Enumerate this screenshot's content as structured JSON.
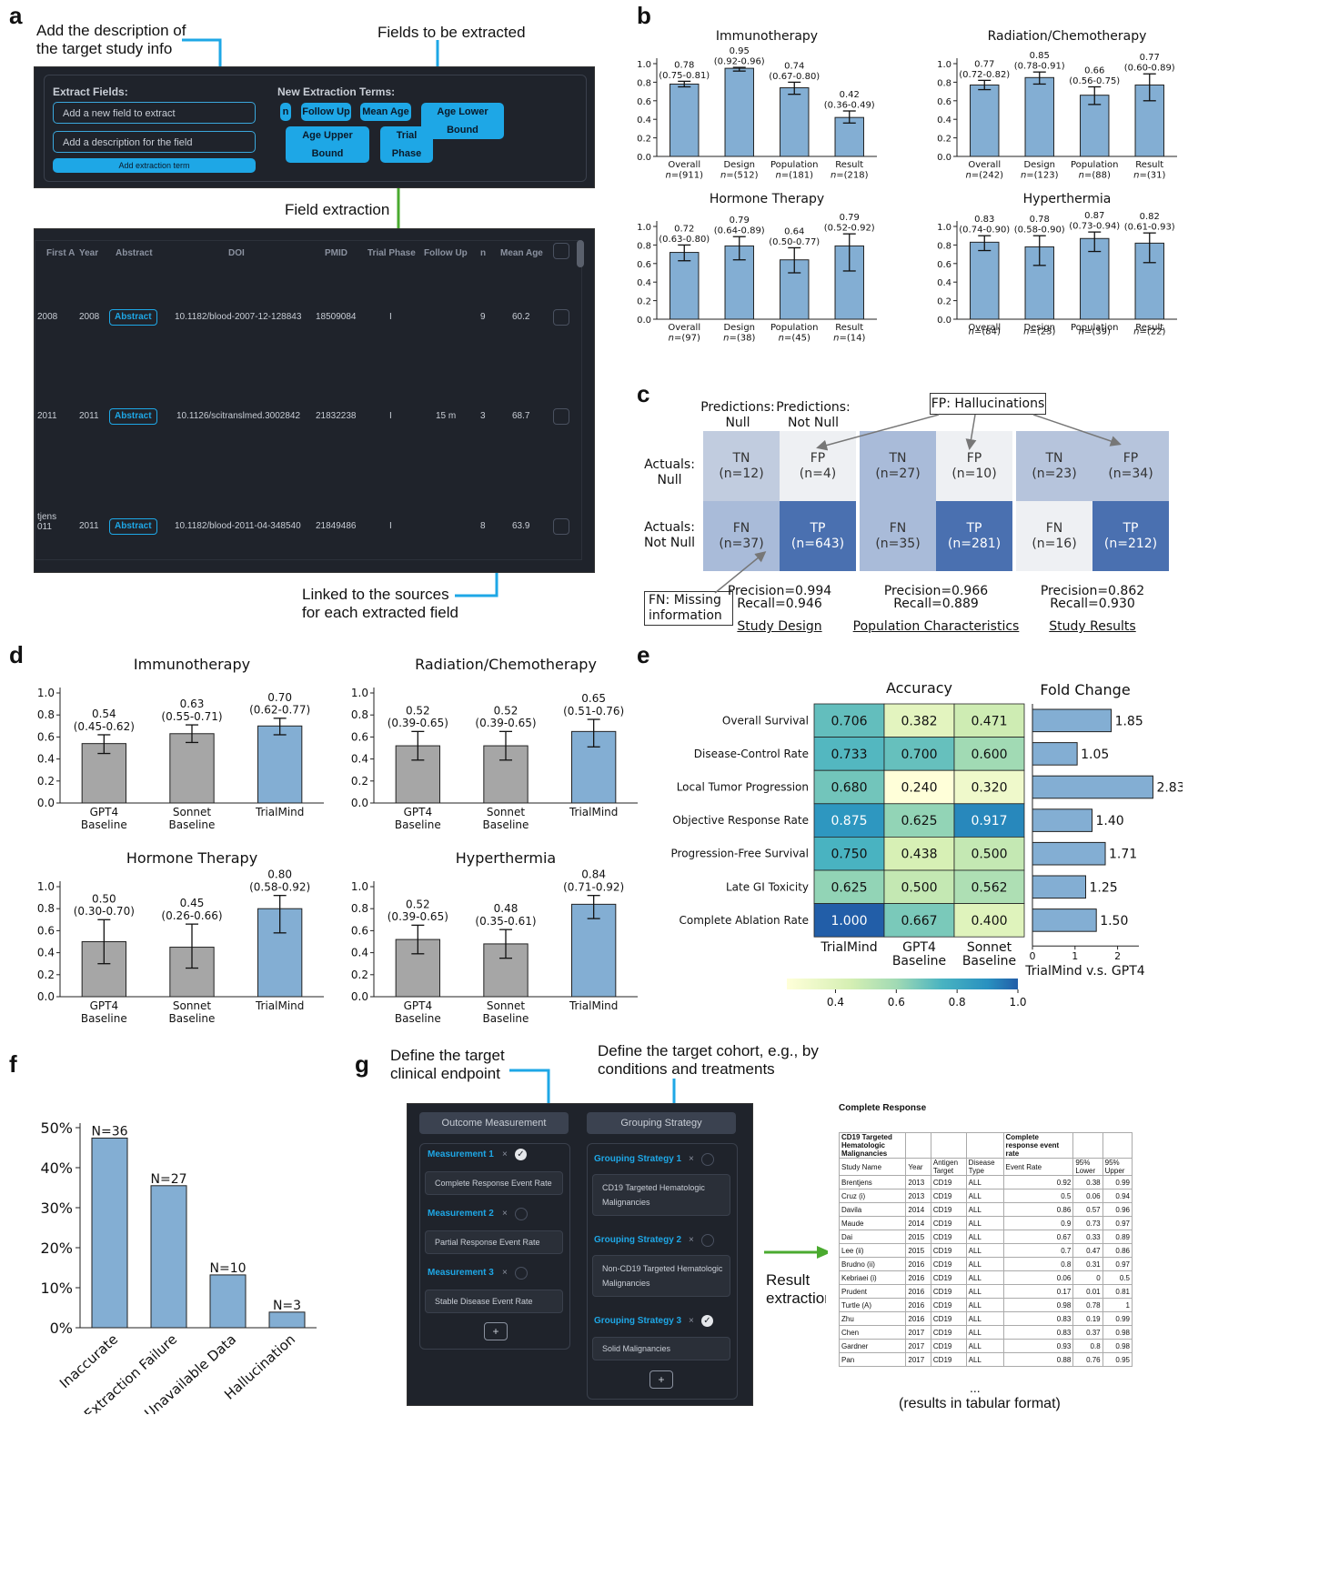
{
  "panels": {
    "a": "a",
    "b": "b",
    "c": "c",
    "d": "d",
    "e": "e",
    "f": "f",
    "g": "g"
  },
  "a": {
    "ann_desc": "Add the description of\nthe target study info",
    "ann_fields": "Fields to be extracted",
    "ann_extract": "Field extraction",
    "ann_linked": "Linked to the sources\nfor each extracted field",
    "extract_title": "Extract Fields:",
    "field_placeholder": "Add a new field to extract",
    "desc_placeholder": "Add a description for the field",
    "add_button": "Add extraction term",
    "terms_title": "New Extraction Terms:",
    "terms": [
      "n",
      "Follow Up",
      "Mean Age",
      "Age Lower Bound",
      "Age Upper Bound",
      "Trial Phase"
    ],
    "headers": [
      "First A",
      "Year",
      "Abstract",
      "DOI",
      "PMID",
      "Trial Phase",
      "Follow Up",
      "n",
      "Mean Age"
    ],
    "rows": [
      {
        "first": "2008",
        "year": "2008",
        "abstract": "Abstract",
        "doi": "10.1182/blood-2007-12-128843",
        "pmid": "18509084",
        "phase": "I",
        "follow": "",
        "n": "9",
        "age": "60.2"
      },
      {
        "first": "2011",
        "year": "2011",
        "abstract": "Abstract",
        "doi": "10.1126/scitranslmed.3002842",
        "pmid": "21832238",
        "phase": "I",
        "follow": "15 m",
        "n": "3",
        "age": "68.7"
      },
      {
        "first": "tjens\n011",
        "year": "2011",
        "abstract": "Abstract",
        "doi": "10.1182/blood-2011-04-348540",
        "pmid": "21849486",
        "phase": "I",
        "follow": "",
        "n": "8",
        "age": "63.9"
      }
    ]
  },
  "chart_data": [
    {
      "id": "b1",
      "type": "bar",
      "title": "Immunotherapy",
      "categories": [
        "Overall",
        "Design",
        "Population",
        "Result"
      ],
      "n": [
        "n=(911)",
        "n=(512)",
        "n=(181)",
        "n=(218)"
      ],
      "values": [
        0.78,
        0.95,
        0.74,
        0.42
      ],
      "ci": [
        [
          0.75,
          0.81
        ],
        [
          0.92,
          0.96
        ],
        [
          0.67,
          0.8
        ],
        [
          0.36,
          0.49
        ]
      ],
      "labels": [
        "0.78\n(0.75-0.81)",
        "0.95\n(0.92-0.96)",
        "0.74\n(0.67-0.80)",
        "0.42\n(0.36-0.49)"
      ],
      "ylim": [
        0,
        1
      ],
      "yticks": [
        "0.0",
        "0.2",
        "0.4",
        "0.6",
        "0.8",
        "1.0"
      ]
    },
    {
      "id": "b2",
      "type": "bar",
      "title": "Radiation/Chemotherapy",
      "categories": [
        "Overall",
        "Design",
        "Population",
        "Result"
      ],
      "n": [
        "n=(242)",
        "n=(123)",
        "n=(88)",
        "n=(31)"
      ],
      "values": [
        0.77,
        0.85,
        0.66,
        0.77
      ],
      "ci": [
        [
          0.72,
          0.82
        ],
        [
          0.78,
          0.91
        ],
        [
          0.56,
          0.75
        ],
        [
          0.6,
          0.89
        ]
      ],
      "labels": [
        "0.77\n(0.72-0.82)",
        "0.85\n(0.78-0.91)",
        "0.66\n(0.56-0.75)",
        "0.77\n(0.60-0.89)"
      ],
      "ylim": [
        0,
        1
      ],
      "yticks": [
        "0.0",
        "0.2",
        "0.4",
        "0.6",
        "0.8",
        "1.0"
      ]
    },
    {
      "id": "b3",
      "type": "bar",
      "title": "Hormone Therapy",
      "categories": [
        "Overall",
        "Design",
        "Population",
        "Result"
      ],
      "n": [
        "n=(97)",
        "n=(38)",
        "n=(45)",
        "n=(14)"
      ],
      "values": [
        0.72,
        0.79,
        0.64,
        0.79
      ],
      "ci": [
        [
          0.63,
          0.8
        ],
        [
          0.64,
          0.89
        ],
        [
          0.5,
          0.77
        ],
        [
          0.52,
          0.92
        ]
      ],
      "labels": [
        "0.72\n(0.63-0.80)",
        "0.79\n(0.64-0.89)",
        "0.64\n(0.50-0.77)",
        "0.79\n(0.52-0.92)"
      ],
      "ylim": [
        0,
        1
      ],
      "yticks": [
        "0.0",
        "0.2",
        "0.4",
        "0.6",
        "0.8",
        "1.0"
      ]
    },
    {
      "id": "b4",
      "type": "bar",
      "title": "Hyperthermia",
      "categories": [
        "Overall",
        "Design",
        "Population",
        "Result"
      ],
      "n": [
        "n=(84)",
        "n=(23)",
        "n=(39)",
        "n=(22)"
      ],
      "values": [
        0.83,
        0.78,
        0.87,
        0.82
      ],
      "ci": [
        [
          0.74,
          0.9
        ],
        [
          0.58,
          0.9
        ],
        [
          0.73,
          0.94
        ],
        [
          0.61,
          0.93
        ]
      ],
      "labels": [
        "0.83\n(0.74-0.90)",
        "0.78\n(0.58-0.90)",
        "0.87\n(0.73-0.94)",
        "0.82\n(0.61-0.93)"
      ],
      "ylim": [
        0,
        1
      ],
      "yticks": [
        "0.0",
        "0.2",
        "0.4",
        "0.6",
        "0.8",
        "1.0"
      ]
    },
    {
      "id": "d1",
      "type": "bar",
      "title": "Immunotherapy",
      "categories": [
        "GPT4\nBaseline",
        "Sonnet\nBaseline",
        "TrialMind"
      ],
      "values": [
        0.54,
        0.63,
        0.7
      ],
      "ci": [
        [
          0.45,
          0.62
        ],
        [
          0.55,
          0.71
        ],
        [
          0.62,
          0.77
        ]
      ],
      "labels": [
        "0.54\n(0.45-0.62)",
        "0.63\n(0.55-0.71)",
        "0.70\n(0.62-0.77)"
      ],
      "colors": [
        "#a6a6a6",
        "#a6a6a6",
        "#83aed3"
      ],
      "ylim": [
        0,
        1
      ],
      "yticks": [
        "0.0",
        "0.2",
        "0.4",
        "0.6",
        "0.8",
        "1.0"
      ]
    },
    {
      "id": "d2",
      "type": "bar",
      "title": "Radiation/Chemotherapy",
      "categories": [
        "GPT4\nBaseline",
        "Sonnet\nBaseline",
        "TrialMind"
      ],
      "values": [
        0.52,
        0.52,
        0.65
      ],
      "ci": [
        [
          0.39,
          0.65
        ],
        [
          0.39,
          0.65
        ],
        [
          0.51,
          0.76
        ]
      ],
      "labels": [
        "0.52\n(0.39-0.65)",
        "0.52\n(0.39-0.65)",
        "0.65\n(0.51-0.76)"
      ],
      "colors": [
        "#a6a6a6",
        "#a6a6a6",
        "#83aed3"
      ],
      "ylim": [
        0,
        1
      ],
      "yticks": [
        "0.0",
        "0.2",
        "0.4",
        "0.6",
        "0.8",
        "1.0"
      ]
    },
    {
      "id": "d3",
      "type": "bar",
      "title": "Hormone Therapy",
      "categories": [
        "GPT4\nBaseline",
        "Sonnet\nBaseline",
        "TrialMind"
      ],
      "values": [
        0.5,
        0.45,
        0.8
      ],
      "ci": [
        [
          0.3,
          0.7
        ],
        [
          0.26,
          0.66
        ],
        [
          0.58,
          0.92
        ]
      ],
      "labels": [
        "0.50\n(0.30-0.70)",
        "0.45\n(0.26-0.66)",
        "0.80\n(0.58-0.92)"
      ],
      "colors": [
        "#a6a6a6",
        "#a6a6a6",
        "#83aed3"
      ],
      "ylim": [
        0,
        1
      ],
      "yticks": [
        "0.0",
        "0.2",
        "0.4",
        "0.6",
        "0.8",
        "1.0"
      ]
    },
    {
      "id": "d4",
      "type": "bar",
      "title": "Hyperthermia",
      "categories": [
        "GPT4\nBaseline",
        "Sonnet\nBaseline",
        "TrialMind"
      ],
      "values": [
        0.52,
        0.48,
        0.84
      ],
      "ci": [
        [
          0.39,
          0.65
        ],
        [
          0.35,
          0.61
        ],
        [
          0.71,
          0.92
        ]
      ],
      "labels": [
        "0.52\n(0.39-0.65)",
        "0.48\n(0.35-0.61)",
        "0.84\n(0.71-0.92)"
      ],
      "colors": [
        "#a6a6a6",
        "#a6a6a6",
        "#83aed3"
      ],
      "ylim": [
        0,
        1
      ],
      "yticks": [
        "0.0",
        "0.2",
        "0.4",
        "0.6",
        "0.8",
        "1.0"
      ]
    },
    {
      "id": "e",
      "type": "heatmap",
      "title": "Accuracy",
      "rows": [
        "Overall Survival",
        "Disease-Control Rate",
        "Local Tumor Progression",
        "Objective Response Rate",
        "Progression-Free Survival",
        "Late GI Toxicity",
        "Complete Ablation Rate"
      ],
      "columns": [
        "TrialMind",
        "GPT4\nBaseline",
        "Sonnet\nBaseline"
      ],
      "values": [
        [
          0.706,
          0.382,
          0.471
        ],
        [
          0.733,
          0.7,
          0.6
        ],
        [
          0.68,
          0.24,
          0.32
        ],
        [
          0.875,
          0.625,
          0.917
        ],
        [
          0.75,
          0.438,
          0.5
        ],
        [
          0.625,
          0.5,
          0.562
        ],
        [
          1.0,
          0.667,
          0.4
        ]
      ],
      "cells": [
        [
          "0.706",
          "0.382",
          "0.471"
        ],
        [
          "0.733",
          "0.700",
          "0.600"
        ],
        [
          "0.680",
          "0.240",
          "0.320"
        ],
        [
          "0.875",
          "0.625",
          "0.917"
        ],
        [
          "0.750",
          "0.438",
          "0.500"
        ],
        [
          "0.625",
          "0.500",
          "0.562"
        ],
        [
          "1.000",
          "0.667",
          "0.400"
        ]
      ],
      "colorbar_ticks": [
        "0.4",
        "0.6",
        "0.8",
        "1.0"
      ],
      "colorbar_range": [
        0.24,
        1.0
      ],
      "fold_title": "Fold Change",
      "fold_values": [
        1.85,
        1.05,
        2.83,
        1.4,
        1.71,
        1.25,
        1.5
      ],
      "fold_labels": [
        "1.85",
        "1.05",
        "2.83",
        "1.40",
        "1.71",
        "1.25",
        "1.50"
      ],
      "fold_ticks": [
        "0",
        "1",
        "2"
      ],
      "fold_xlabel": "TrialMind v.s. GPT4",
      "fold_xlim": [
        0,
        3
      ]
    },
    {
      "id": "f",
      "type": "bar",
      "categories": [
        "Inaccurate",
        "Extraction Failure",
        "Unavailable Data",
        "Hallucination"
      ],
      "values": [
        47.4,
        35.5,
        13.2,
        3.9
      ],
      "labels": [
        "N=36",
        "N=27",
        "N=10",
        "N=3"
      ],
      "ylim": [
        0,
        50
      ],
      "yticks": [
        "0%",
        "10%",
        "20%",
        "30%",
        "40%",
        "50%"
      ]
    }
  ],
  "c": {
    "pred_null": "Predictions:\nNull",
    "pred_notnull": "Predictions:\nNot Null",
    "fp_note": "FP: Hallucinations",
    "fn_note": "FN: Missing\ninformation",
    "actual_null": "Actuals:\nNull",
    "actual_notnull": "Actuals:\nNot Null",
    "matrices": [
      {
        "title": "Study Design",
        "cells": [
          "TN\n(n=12)",
          "FP\n(n=4)",
          "FN\n(n=37)",
          "TP\n(n=643)"
        ],
        "precision": "Precision=0.994",
        "recall": "Recall=0.946"
      },
      {
        "title": "Population Characteristics",
        "cells": [
          "TN\n(n=27)",
          "FP\n(n=10)",
          "FN\n(n=35)",
          "TP\n(n=281)"
        ],
        "precision": "Precision=0.966",
        "recall": "Recall=0.889"
      },
      {
        "title": "Study Results",
        "cells": [
          "TN\n(n=23)",
          "FP\n(n=34)",
          "FN\n(n=16)",
          "TP\n(n=212)"
        ],
        "precision": "Precision=0.862",
        "recall": "Recall=0.930"
      }
    ]
  },
  "g": {
    "ann_endpoint": "Define the target\nclinical endpoint",
    "ann_cohort": "Define the target cohort, e.g., by\nconditions and treatments",
    "result_label": "Result\nextraction",
    "outcome_title": "Outcome Measurement",
    "group_title": "Grouping Strategy",
    "measurements": [
      {
        "label": "Measurement 1",
        "value": "Complete Response Event Rate"
      },
      {
        "label": "Measurement 2",
        "value": "Partial Response Event Rate"
      },
      {
        "label": "Measurement 3",
        "value": "Stable Disease Event Rate"
      }
    ],
    "groups": [
      {
        "label": "Grouping Strategy 1",
        "value": "CD19 Targeted Hematologic\nMalignancies"
      },
      {
        "label": "Grouping Strategy 2",
        "value": "Non-CD19 Targeted Hematologic\nMalignancies"
      },
      {
        "label": "Grouping Strategy 3",
        "value": "Solid Malignancies"
      }
    ],
    "x_mark": "×",
    "plus": "+",
    "table_title": "Complete Response",
    "group_name": "CD19 Targeted\nHematologic\nMalignancies",
    "outcome_name": "Complete\nresponse event\nrate",
    "headers": [
      "Study Name",
      "Year",
      "Antigen\nTarget",
      "Disease\nType",
      "Event Rate",
      "95%\nLower",
      "95%\nUpper"
    ],
    "rows": [
      [
        "Brentjens",
        "2013",
        "CD19",
        "ALL",
        "0.92",
        "0.38",
        "0.99"
      ],
      [
        "Cruz (i)",
        "2013",
        "CD19",
        "ALL",
        "0.5",
        "0.06",
        "0.94"
      ],
      [
        "Davila",
        "2014",
        "CD19",
        "ALL",
        "0.86",
        "0.57",
        "0.96"
      ],
      [
        "Maude",
        "2014",
        "CD19",
        "ALL",
        "0.9",
        "0.73",
        "0.97"
      ],
      [
        "Dai",
        "2015",
        "CD19",
        "ALL",
        "0.67",
        "0.33",
        "0.89"
      ],
      [
        "Lee (ii)",
        "2015",
        "CD19",
        "ALL",
        "0.7",
        "0.47",
        "0.86"
      ],
      [
        "Brudno (ii)",
        "2016",
        "CD19",
        "ALL",
        "0.8",
        "0.31",
        "0.97"
      ],
      [
        "Kebriaei (i)",
        "2016",
        "CD19",
        "ALL",
        "0.06",
        "0",
        "0.5"
      ],
      [
        "Prudent",
        "2016",
        "CD19",
        "ALL",
        "0.17",
        "0.01",
        "0.81"
      ],
      [
        "Turtle (A)",
        "2016",
        "CD19",
        "ALL",
        "0.98",
        "0.78",
        "1"
      ],
      [
        "Zhu",
        "2016",
        "CD19",
        "ALL",
        "0.83",
        "0.19",
        "0.99"
      ],
      [
        "Chen",
        "2017",
        "CD19",
        "ALL",
        "0.83",
        "0.37",
        "0.98"
      ],
      [
        "Gardner",
        "2017",
        "CD19",
        "ALL",
        "0.93",
        "0.8",
        "0.98"
      ],
      [
        "Pan",
        "2017",
        "CD19",
        "ALL",
        "0.88",
        "0.76",
        "0.95"
      ]
    ],
    "ellipsis": "...",
    "caption": "(results in tabular format)"
  }
}
